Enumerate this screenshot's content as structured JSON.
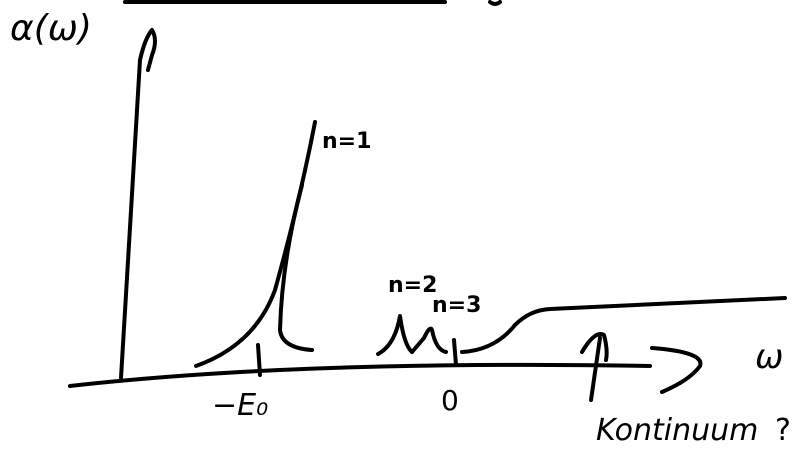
{
  "y_label": "α(ω)",
  "x_label": "ω",
  "peaks": [
    {
      "label": "n=1"
    },
    {
      "label": "n=2"
    },
    {
      "label": "n=3"
    }
  ],
  "ticks": [
    {
      "label": "−E₀"
    },
    {
      "label": "0"
    }
  ],
  "continuum_label": "Kontinuum",
  "question": "?"
}
